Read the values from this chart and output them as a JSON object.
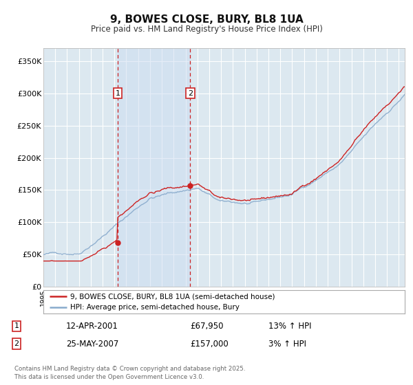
{
  "title": "9, BOWES CLOSE, BURY, BL8 1UA",
  "subtitle": "Price paid vs. HM Land Registry's House Price Index (HPI)",
  "ylim": [
    0,
    370000
  ],
  "yticks": [
    0,
    50000,
    100000,
    150000,
    200000,
    250000,
    300000,
    350000
  ],
  "ytick_labels": [
    "£0",
    "£50K",
    "£100K",
    "£150K",
    "£200K",
    "£250K",
    "£300K",
    "£350K"
  ],
  "xlim": [
    1995,
    2025.5
  ],
  "background_color": "#ffffff",
  "plot_background_color": "#dce8f0",
  "grid_color": "#ffffff",
  "purchase1_x": 2001.28,
  "purchase1_y": 67950,
  "purchase2_x": 2007.39,
  "purchase2_y": 157000,
  "legend1": "9, BOWES CLOSE, BURY, BL8 1UA (semi-detached house)",
  "legend2": "HPI: Average price, semi-detached house, Bury",
  "note1_label": "1",
  "note1_date": "12-APR-2001",
  "note1_price": "£67,950",
  "note1_hpi": "13% ↑ HPI",
  "note2_label": "2",
  "note2_date": "25-MAY-2007",
  "note2_price": "£157,000",
  "note2_hpi": "3% ↑ HPI",
  "footer": "Contains HM Land Registry data © Crown copyright and database right 2025.\nThis data is licensed under the Open Government Licence v3.0.",
  "line_red_color": "#cc2222",
  "line_blue_color": "#88aacc",
  "vline_color": "#cc2222",
  "shade_color": "#ccddf0",
  "label_box_color": "#cc2222"
}
